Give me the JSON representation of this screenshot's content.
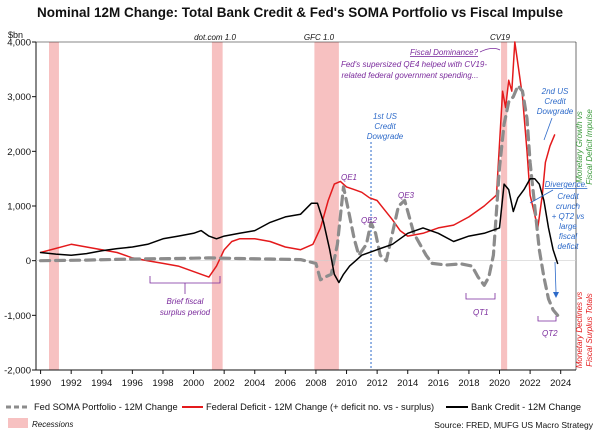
{
  "chart_data": {
    "type": "line",
    "title": "Nominal 12M Change: Total Bank Credit & Fed's SOMA Portfolio vs Fiscal Impulse",
    "ylabel": "$bn",
    "ylim": [
      -2000,
      4000
    ],
    "xlim": [
      1989.7,
      2025
    ],
    "y_ticks": [
      -2000,
      -1000,
      0,
      1000,
      2000,
      3000,
      4000
    ],
    "y_tick_labels": [
      "-2,000",
      "-1,000",
      "0",
      "1,000",
      "2,000",
      "3,000",
      "4,000"
    ],
    "x_ticks": [
      1990,
      1992,
      1994,
      1996,
      1998,
      2000,
      2002,
      2004,
      2006,
      2008,
      2010,
      2012,
      2014,
      2016,
      2018,
      2020,
      2022,
      2024
    ],
    "x_tick_labels": [
      "1990",
      "1992",
      "1994",
      "1996",
      "1998",
      "2000",
      "2002",
      "2004",
      "2006",
      "2008",
      "2010",
      "2012",
      "2014",
      "2016",
      "2018",
      "2020",
      "2022",
      "2024"
    ],
    "grid": false,
    "legend_position": "bottom",
    "recessions": [
      [
        1990.55,
        1991.2
      ],
      [
        2001.2,
        2001.9
      ],
      [
        2007.9,
        2009.5
      ],
      [
        2020.1,
        2020.5
      ]
    ],
    "series": [
      {
        "name": "Fed SOMA Portfolio - 12M Change",
        "style": "dashed",
        "color": "#8c8c8c",
        "x": [
          1990,
          1993,
          1996,
          1999,
          2000,
          2001,
          2003,
          2005,
          2007,
          2008,
          2008.3,
          2008.6,
          2009.0,
          2009.4,
          2009.8,
          2010.1,
          2010.5,
          2010.8,
          2011.3,
          2011.6,
          2011.9,
          2012.2,
          2012.6,
          2013.0,
          2013.4,
          2013.8,
          2014.1,
          2014.4,
          2014.8,
          2015.2,
          2015.6,
          2016.5,
          2017.5,
          2018.2,
          2018.6,
          2019.0,
          2019.3,
          2019.6,
          2020.0,
          2020.3,
          2020.6,
          2020.9,
          2021.2,
          2021.5,
          2021.8,
          2022.0,
          2022.3,
          2022.6,
          2022.9,
          2023.2,
          2023.5,
          2023.8
        ],
        "values": [
          0,
          10,
          30,
          40,
          45,
          50,
          40,
          30,
          20,
          -50,
          -350,
          -300,
          -250,
          300,
          1350,
          950,
          400,
          100,
          300,
          700,
          500,
          100,
          0,
          500,
          1000,
          1100,
          800,
          500,
          300,
          100,
          -50,
          -80,
          -60,
          -100,
          -300,
          -450,
          -300,
          100,
          1700,
          2500,
          2900,
          3000,
          3200,
          3100,
          2600,
          1800,
          1000,
          200,
          -300,
          -700,
          -900,
          -1000
        ]
      },
      {
        "name": "Federal Deficit - 12M Change (+ deficit no. vs - surplus)",
        "style": "solid",
        "color": "#e41a1c",
        "x": [
          1990,
          1992,
          1993,
          1994,
          1995,
          1996,
          1997,
          1998,
          1999,
          2000,
          2000.5,
          2001.0,
          2001.5,
          2002.0,
          2002.5,
          2003.0,
          2004,
          2005,
          2006,
          2007,
          2007.8,
          2008.3,
          2008.8,
          2009.2,
          2009.6,
          2010.0,
          2010.5,
          2011.0,
          2011.5,
          2012,
          2013,
          2013.5,
          2014,
          2015,
          2016,
          2017,
          2018,
          2019,
          2019.8,
          2020.2,
          2020.4,
          2020.6,
          2020.8,
          2021.0,
          2021.2,
          2021.5,
          2021.8,
          2022.0,
          2022.5,
          2022.8,
          2023.0,
          2023.3,
          2023.6
        ],
        "values": [
          150,
          300,
          250,
          200,
          150,
          50,
          0,
          -50,
          -100,
          -200,
          -250,
          -300,
          -100,
          200,
          350,
          400,
          400,
          350,
          250,
          200,
          300,
          600,
          1100,
          1400,
          1450,
          1350,
          1300,
          1250,
          1150,
          1100,
          750,
          550,
          450,
          500,
          600,
          650,
          800,
          1000,
          1200,
          3100,
          2800,
          3300,
          3100,
          4000,
          3600,
          3000,
          2000,
          1200,
          600,
          1200,
          1800,
          2100,
          2300
        ]
      },
      {
        "name": "Bank Credit - 12M Change",
        "style": "solid",
        "color": "#000000",
        "x": [
          1990,
          1991,
          1992,
          1993,
          1994,
          1995,
          1996,
          1997,
          1998,
          1999,
          2000,
          2000.5,
          2001.0,
          2001.5,
          2002,
          2003,
          2004,
          2005,
          2006,
          2007,
          2007.7,
          2008.1,
          2008.5,
          2008.9,
          2009.2,
          2009.5,
          2009.8,
          2010.2,
          2010.6,
          2011,
          2012,
          2013,
          2014,
          2015,
          2016,
          2017,
          2018,
          2019,
          2020.0,
          2020.3,
          2020.6,
          2020.9,
          2021.2,
          2021.6,
          2022.0,
          2022.3,
          2022.6,
          2022.9,
          2023.2,
          2023.5,
          2023.8
        ],
        "values": [
          150,
          120,
          100,
          130,
          180,
          220,
          250,
          300,
          400,
          450,
          500,
          550,
          450,
          400,
          450,
          500,
          550,
          700,
          800,
          850,
          1050,
          1050,
          700,
          200,
          -250,
          -400,
          -250,
          -100,
          0,
          100,
          200,
          300,
          500,
          600,
          500,
          350,
          450,
          500,
          600,
          1400,
          1300,
          900,
          1150,
          1300,
          1500,
          1500,
          1400,
          1100,
          600,
          200,
          -50
        ]
      }
    ],
    "recession_label": "Recessions",
    "annotations": {
      "dotcom": "dot.com 1.0",
      "gfc": "GFC 1.0",
      "cv19": "CV19",
      "fiscal_dom_1": "Fiscal Dominance?",
      "fiscal_dom_2": "Fed's supersized QE4 helped with CV19-",
      "fiscal_dom_3": "related federal government spending...",
      "dg1_1": "1st US",
      "dg1_2": "Credit",
      "dg1_3": "Dowgrade",
      "dg2_1": "2nd US",
      "dg2_2": "Credit",
      "dg2_3": "Dowgrade",
      "qe1": "QE1",
      "qe2": "QE2",
      "qe3": "QE3",
      "qt1": "QT1",
      "qt2": "QT2",
      "brief_1": "Brief fiscal",
      "brief_2": "surplus period",
      "div_1": "Divergence:",
      "div_2": "Credit",
      "div_3": "crunch",
      "div_4": "+ QT2 vs",
      "div_5": "large",
      "div_6": "fiscal",
      "div_7": "deficit",
      "green_1": "Monetary Growth vs",
      "green_2": "Fiscal Deficit Impulse",
      "red_1": "Monetary Declines vs",
      "red_2": "Fiscal Surplus Totals"
    },
    "source": "Source: FRED, MUFG US Macro Strategy"
  }
}
